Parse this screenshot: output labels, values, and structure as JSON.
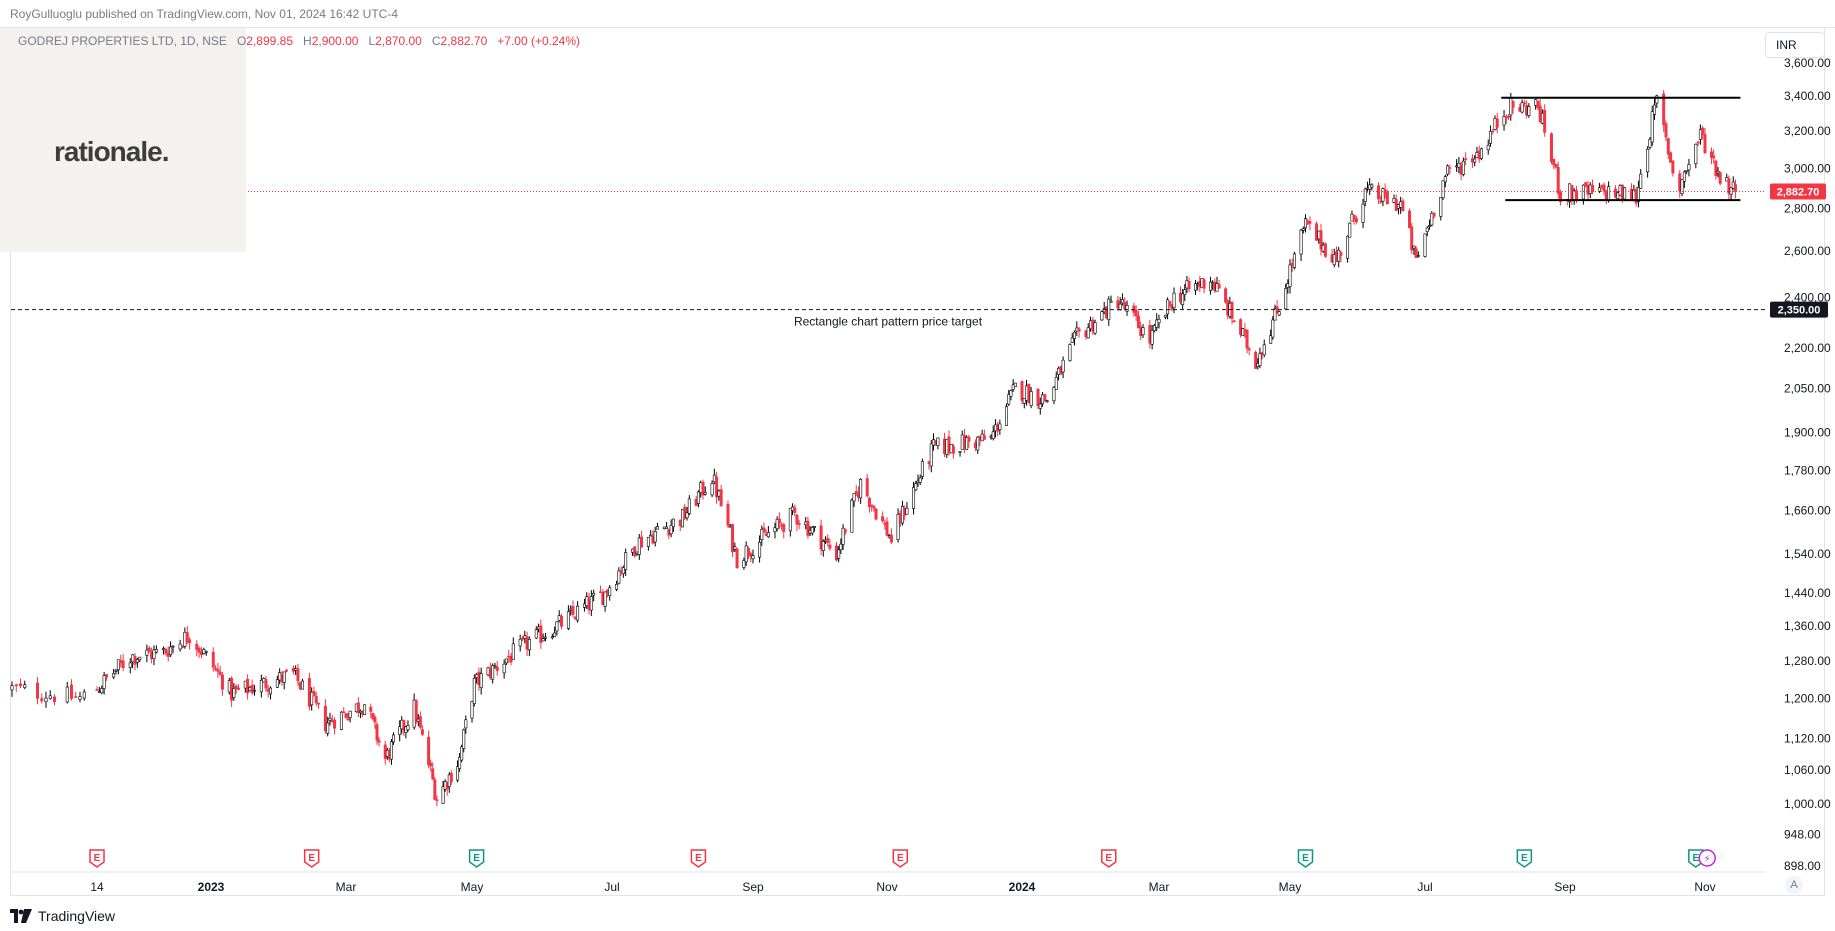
{
  "header": {
    "published_text": "RoyGulluoglu published on TradingView.com, Nov 01, 2024 16:42 UTC-4"
  },
  "legend": {
    "symbol": "GODREJ PROPERTIES LTD, 1D, NSE",
    "o_label": "O",
    "o": "2,899.85",
    "h_label": "H",
    "h": "2,900.00",
    "l_label": "L",
    "l": "2,870.00",
    "c_label": "C",
    "c": "2,882.70",
    "change": "+7.00 (+0.24%)"
  },
  "logo": {
    "text": "rationale."
  },
  "toolbar": {
    "currency": "INR",
    "auto_label": "A"
  },
  "footer": {
    "brand": "TradingView"
  },
  "colors": {
    "up": "#ffffff",
    "up_border": "#000000",
    "down": "#f23645",
    "last_price_line": "#f23645",
    "earnings_red": "#f23645",
    "earnings_green": "#089981"
  },
  "chart_data": {
    "type": "candlestick",
    "y_scale": "log",
    "ylim": [
      880,
      3780
    ],
    "y_ticks": [
      "898.00",
      "948.00",
      "1,000.00",
      "1,060.00",
      "1,120.00",
      "1,200.00",
      "1,280.00",
      "1,360.00",
      "1,440.00",
      "1,540.00",
      "1,660.00",
      "1,780.00",
      "1,900.00",
      "2,050.00",
      "2,200.00",
      "2,400.00",
      "2,600.00",
      "2,800.00",
      "3,000.00",
      "3,200.00",
      "3,400.00",
      "3,600.00"
    ],
    "x_ticks": [
      {
        "label": "14",
        "date": "2022-11-14",
        "bold": false
      },
      {
        "label": "2023",
        "date": "2023-01-01",
        "bold": true
      },
      {
        "label": "Mar",
        "date": "2023-03-01",
        "bold": false
      },
      {
        "label": "May",
        "date": "2023-05-01",
        "bold": false
      },
      {
        "label": "Jul",
        "date": "2023-07-01",
        "bold": false
      },
      {
        "label": "Sep",
        "date": "2023-09-01",
        "bold": false
      },
      {
        "label": "Nov",
        "date": "2023-11-01",
        "bold": false
      },
      {
        "label": "2024",
        "date": "2024-01-01",
        "bold": true
      },
      {
        "label": "Mar",
        "date": "2024-03-01",
        "bold": false
      },
      {
        "label": "May",
        "date": "2024-05-01",
        "bold": false
      },
      {
        "label": "Jul",
        "date": "2024-07-01",
        "bold": false
      },
      {
        "label": "Sep",
        "date": "2024-09-01",
        "bold": false
      },
      {
        "label": "Nov",
        "date": "2024-11-01",
        "bold": false
      }
    ],
    "close_path": [
      {
        "date": "2022-10-25",
        "close": 1220
      },
      {
        "date": "2022-11-10",
        "close": 1200
      },
      {
        "date": "2022-11-28",
        "close": 1290
      },
      {
        "date": "2022-12-12",
        "close": 1300
      },
      {
        "date": "2022-12-23",
        "close": 1340
      },
      {
        "date": "2023-01-10",
        "close": 1210
      },
      {
        "date": "2023-02-06",
        "close": 1250
      },
      {
        "date": "2023-02-20",
        "close": 1150
      },
      {
        "date": "2023-03-10",
        "close": 1190
      },
      {
        "date": "2023-03-20",
        "close": 1080
      },
      {
        "date": "2023-04-03",
        "close": 1180
      },
      {
        "date": "2023-04-14",
        "close": 1010
      },
      {
        "date": "2023-04-25",
        "close": 1080
      },
      {
        "date": "2023-05-02",
        "close": 1230
      },
      {
        "date": "2023-05-25",
        "close": 1320
      },
      {
        "date": "2023-06-10",
        "close": 1370
      },
      {
        "date": "2023-06-28",
        "close": 1440
      },
      {
        "date": "2023-07-12",
        "close": 1570
      },
      {
        "date": "2023-08-01",
        "close": 1640
      },
      {
        "date": "2023-08-14",
        "close": 1760
      },
      {
        "date": "2023-08-25",
        "close": 1530
      },
      {
        "date": "2023-09-20",
        "close": 1650
      },
      {
        "date": "2023-10-09",
        "close": 1540
      },
      {
        "date": "2023-10-20",
        "close": 1740
      },
      {
        "date": "2023-11-03",
        "close": 1580
      },
      {
        "date": "2023-11-22",
        "close": 1850
      },
      {
        "date": "2023-12-18",
        "close": 1880
      },
      {
        "date": "2023-12-29",
        "close": 2050
      },
      {
        "date": "2024-01-12",
        "close": 2010
      },
      {
        "date": "2024-01-25",
        "close": 2240
      },
      {
        "date": "2024-02-12",
        "close": 2390
      },
      {
        "date": "2024-02-26",
        "close": 2230
      },
      {
        "date": "2024-03-08",
        "close": 2400
      },
      {
        "date": "2024-03-25",
        "close": 2480
      },
      {
        "date": "2024-04-15",
        "close": 2150
      },
      {
        "date": "2024-04-25",
        "close": 2340
      },
      {
        "date": "2024-05-08",
        "close": 2720
      },
      {
        "date": "2024-05-22",
        "close": 2560
      },
      {
        "date": "2024-06-04",
        "close": 2880
      },
      {
        "date": "2024-06-20",
        "close": 2820
      },
      {
        "date": "2024-06-27",
        "close": 2550
      },
      {
        "date": "2024-07-10",
        "close": 2960
      },
      {
        "date": "2024-07-26",
        "close": 3100
      },
      {
        "date": "2024-08-06",
        "close": 3330
      },
      {
        "date": "2024-08-20",
        "close": 3340
      },
      {
        "date": "2024-08-30",
        "close": 2870
      },
      {
        "date": "2024-09-20",
        "close": 2880
      },
      {
        "date": "2024-10-02",
        "close": 2860
      },
      {
        "date": "2024-10-11",
        "close": 3370
      },
      {
        "date": "2024-10-20",
        "close": 2880
      },
      {
        "date": "2024-10-30",
        "close": 3180
      },
      {
        "date": "2024-11-08",
        "close": 2960
      },
      {
        "date": "2024-11-15",
        "close": 2882.7
      }
    ],
    "last_price": {
      "value": 2882.7,
      "label": "2,882.70"
    },
    "target": {
      "value": 2350,
      "label": "2,350.00",
      "text": "Rectangle chart pattern price target"
    },
    "rectangle": {
      "top": 3390,
      "bottom": 2840,
      "start_date": "2024-08-06",
      "end_date": "2024-11-15"
    },
    "earnings_markers": [
      {
        "date": "2022-11-14",
        "type": "red",
        "label": "E"
      },
      {
        "date": "2023-02-14",
        "type": "red",
        "label": "E"
      },
      {
        "date": "2023-05-03",
        "type": "green",
        "label": "E"
      },
      {
        "date": "2023-08-08",
        "type": "red",
        "label": "E"
      },
      {
        "date": "2023-11-07",
        "type": "red",
        "label": "E"
      },
      {
        "date": "2024-02-08",
        "type": "red",
        "label": "E"
      },
      {
        "date": "2024-05-08",
        "type": "green",
        "label": "E"
      },
      {
        "date": "2024-08-14",
        "type": "green",
        "label": "E"
      },
      {
        "date": "2024-10-28",
        "type": "green",
        "label": "E"
      },
      {
        "date": "2024-11-02",
        "type": "split",
        "label": "⚡"
      }
    ]
  }
}
